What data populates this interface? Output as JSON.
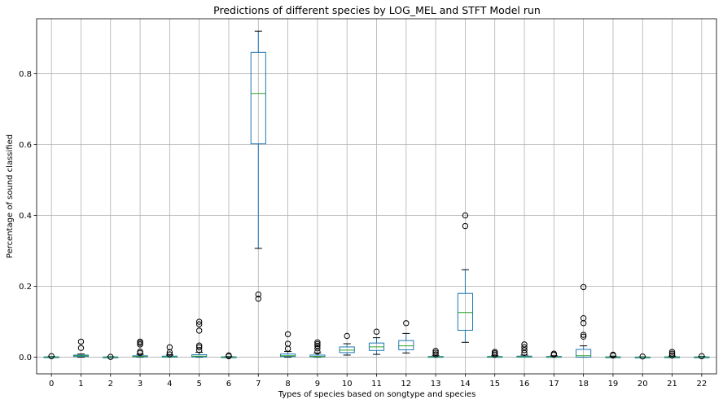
{
  "chart_data": {
    "type": "box",
    "title": "Predictions of different species by LOG_MEL and STFT Model run",
    "xlabel": "Types of species based on songtype and species",
    "ylabel": "Percentage of sound classified",
    "ylim": [
      -0.047,
      0.955
    ],
    "yticks": [
      "0.0",
      "0.2",
      "0.4",
      "0.6",
      "0.8"
    ],
    "grid": true,
    "colors": {
      "box": "#1f77b4",
      "median": "#2ca02c",
      "whisker": "#000000",
      "grid": "#b0b0b0"
    },
    "categories": [
      "0",
      "1",
      "2",
      "3",
      "4",
      "5",
      "6",
      "7",
      "8",
      "9",
      "10",
      "11",
      "12",
      "13",
      "14",
      "15",
      "16",
      "17",
      "18",
      "19",
      "20",
      "21",
      "22"
    ],
    "boxes": [
      {
        "q1": 0.0,
        "median": 0.0005,
        "q3": 0.001,
        "whislo": 0.0,
        "whishi": 0.002,
        "fliers": [
          0.003
        ]
      },
      {
        "q1": 0.002,
        "median": 0.004,
        "q3": 0.006,
        "whislo": 0.0,
        "whishi": 0.009,
        "fliers": [
          0.026,
          0.044
        ]
      },
      {
        "q1": 0.0,
        "median": 0.0003,
        "q3": 0.0007,
        "whislo": 0.0,
        "whishi": 0.0015,
        "fliers": [
          0.001
        ]
      },
      {
        "q1": 0.001,
        "median": 0.002,
        "q3": 0.004,
        "whislo": 0.0,
        "whishi": 0.008,
        "fliers": [
          0.012,
          0.016,
          0.036,
          0.04,
          0.044
        ]
      },
      {
        "q1": 0.0,
        "median": 0.001,
        "q3": 0.003,
        "whislo": 0.0,
        "whishi": 0.006,
        "fliers": [
          0.008,
          0.014,
          0.028
        ]
      },
      {
        "q1": 0.001,
        "median": 0.003,
        "q3": 0.007,
        "whislo": 0.0,
        "whishi": 0.014,
        "fliers": [
          0.02,
          0.028,
          0.033,
          0.075,
          0.093,
          0.1
        ]
      },
      {
        "q1": 0.0,
        "median": 0.0005,
        "q3": 0.001,
        "whislo": 0.0,
        "whishi": 0.002,
        "fliers": [
          0.003,
          0.005
        ]
      },
      {
        "q1": 0.602,
        "median": 0.744,
        "q3": 0.86,
        "whislo": 0.307,
        "whishi": 0.92,
        "fliers": [
          0.165,
          0.177
        ]
      },
      {
        "q1": 0.002,
        "median": 0.004,
        "q3": 0.009,
        "whislo": 0.0,
        "whishi": 0.016,
        "fliers": [
          0.024,
          0.038,
          0.065
        ]
      },
      {
        "q1": 0.001,
        "median": 0.002,
        "q3": 0.006,
        "whislo": 0.0,
        "whishi": 0.012,
        "fliers": [
          0.016,
          0.025,
          0.032,
          0.037,
          0.042
        ]
      },
      {
        "q1": 0.013,
        "median": 0.02,
        "q3": 0.029,
        "whislo": 0.006,
        "whishi": 0.038,
        "fliers": [
          0.06
        ]
      },
      {
        "q1": 0.019,
        "median": 0.029,
        "q3": 0.04,
        "whislo": 0.008,
        "whishi": 0.055,
        "fliers": [
          0.072
        ]
      },
      {
        "q1": 0.021,
        "median": 0.032,
        "q3": 0.047,
        "whislo": 0.012,
        "whishi": 0.067,
        "fliers": [
          0.096
        ]
      },
      {
        "q1": 0.0,
        "median": 0.001,
        "q3": 0.002,
        "whislo": 0.0,
        "whishi": 0.004,
        "fliers": [
          0.008,
          0.013,
          0.018
        ]
      },
      {
        "q1": 0.076,
        "median": 0.126,
        "q3": 0.18,
        "whislo": 0.042,
        "whishi": 0.247,
        "fliers": [
          0.37,
          0.4
        ]
      },
      {
        "q1": 0.0,
        "median": 0.001,
        "q3": 0.002,
        "whislo": 0.0,
        "whishi": 0.004,
        "fliers": [
          0.007,
          0.011,
          0.015
        ]
      },
      {
        "q1": 0.0,
        "median": 0.001,
        "q3": 0.003,
        "whislo": 0.0,
        "whishi": 0.006,
        "fliers": [
          0.012,
          0.02,
          0.028,
          0.036
        ]
      },
      {
        "q1": 0.0,
        "median": 0.0005,
        "q3": 0.002,
        "whislo": 0.0,
        "whishi": 0.004,
        "fliers": [
          0.007,
          0.01
        ]
      },
      {
        "q1": 0.0,
        "median": 0.004,
        "q3": 0.022,
        "whislo": 0.0,
        "whishi": 0.032,
        "fliers": [
          0.058,
          0.063,
          0.096,
          0.11,
          0.198
        ]
      },
      {
        "q1": 0.0,
        "median": 0.0005,
        "q3": 0.001,
        "whislo": 0.0,
        "whishi": 0.003,
        "fliers": [
          0.005,
          0.007
        ]
      },
      {
        "q1": 0.0,
        "median": 0.0002,
        "q3": 0.0005,
        "whislo": 0.0,
        "whishi": 0.001,
        "fliers": [
          0.002
        ]
      },
      {
        "q1": 0.0,
        "median": 0.0005,
        "q3": 0.001,
        "whislo": 0.0,
        "whishi": 0.003,
        "fliers": [
          0.005,
          0.01,
          0.015
        ]
      },
      {
        "q1": 0.0,
        "median": 0.0003,
        "q3": 0.0008,
        "whislo": 0.0,
        "whishi": 0.002,
        "fliers": [
          0.003
        ]
      }
    ]
  }
}
